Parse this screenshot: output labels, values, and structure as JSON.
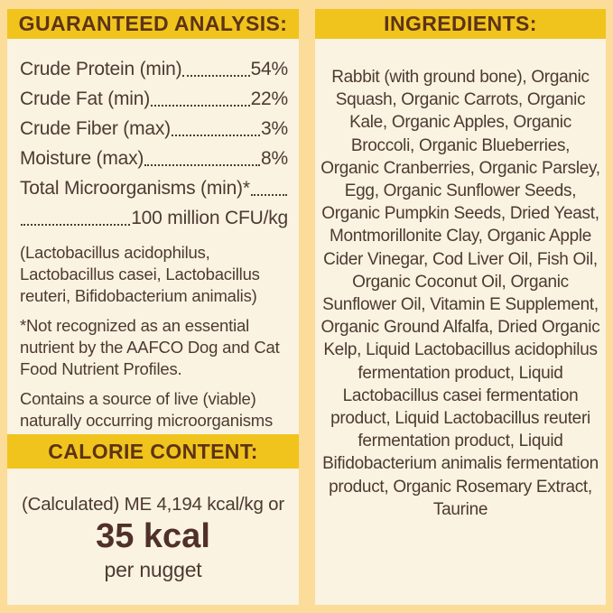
{
  "colors": {
    "background": "#fbdc98",
    "panel_cream": "#faf3e2",
    "header_bar_yellow": "#f0c41c",
    "header_text_brown": "#5d3317",
    "body_text_brown": "#4d3a31"
  },
  "guaranteed_analysis": {
    "title": "GUARANTEED ANALYSIS:",
    "rows": [
      {
        "label": "Crude Protein (min)",
        "value": "54%"
      },
      {
        "label": "Crude Fat (min)",
        "value": "22%"
      },
      {
        "label": "Crude Fiber (max)",
        "value": "3%"
      },
      {
        "label": "Moisture (max)",
        "value": "8%"
      },
      {
        "label": "Total Microorganisms (min)*",
        "value": ""
      },
      {
        "label": "",
        "value": "100 million CFU/kg"
      }
    ],
    "notes": [
      "(Lactobacillus acidophilus, Lactobacillus casei, Lactobacillus reuteri, Bifidobacterium animalis)",
      "*Not recognized as an essential nutrient by the AAFCO Dog and Cat Food Nutrient Profiles.",
      "Contains a source of live (viable) naturally occurring microorganisms"
    ]
  },
  "calorie_content": {
    "title": "CALORIE CONTENT:",
    "line1": "(Calculated) ME 4,194 kcal/kg or",
    "value": "35 kcal",
    "unit": "per nugget"
  },
  "ingredients": {
    "title": "INGREDIENTS:",
    "text": "Rabbit (with ground bone), Organic Squash, Organic Carrots, Organic Kale, Organic Apples, Organic Broccoli, Organic Blueberries, Organic Cranberries, Organic Parsley, Egg, Organic Sunflower Seeds, Organic Pumpkin Seeds, Dried Yeast, Montmorillonite Clay, Organic Apple Cider Vinegar, Cod Liver Oil, Fish Oil, Organic Coconut Oil, Organic Sunflower Oil, Vitamin E Supplement, Organic Ground Alfalfa, Dried Organic Kelp, Liquid Lactobacillus acidophilus fermentation product, Liquid Lactobacillus casei fermentation product, Liquid Lactobacillus reuteri fermentation product, Liquid Bifidobacterium animalis fermentation product, Organic Rosemary Extract, Taurine"
  }
}
